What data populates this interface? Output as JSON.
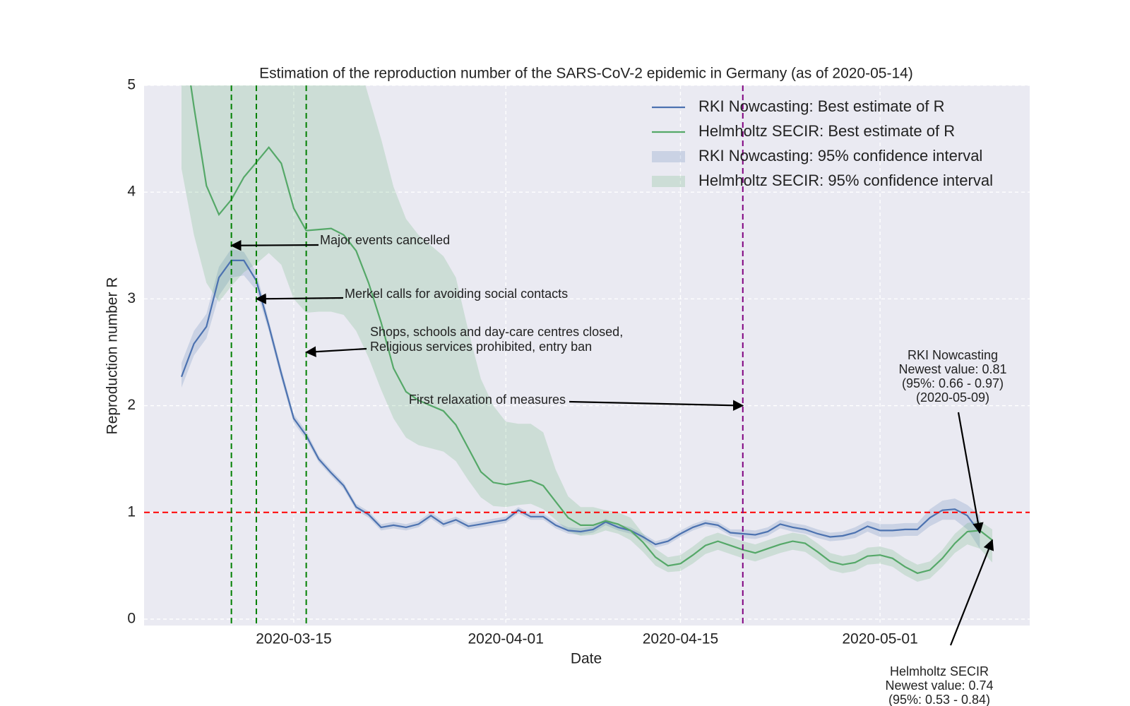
{
  "chart_data": {
    "type": "line",
    "title": "Estimation of the reproduction number of the SARS-CoV-2 epidemic in Germany (as of 2020-05-14)",
    "x_label": "Date",
    "y_label": "Reproduction number R",
    "x": [
      "2020-03-06",
      "2020-03-07",
      "2020-03-08",
      "2020-03-09",
      "2020-03-10",
      "2020-03-11",
      "2020-03-12",
      "2020-03-13",
      "2020-03-14",
      "2020-03-15",
      "2020-03-16",
      "2020-03-17",
      "2020-03-18",
      "2020-03-19",
      "2020-03-20",
      "2020-03-21",
      "2020-03-22",
      "2020-03-23",
      "2020-03-24",
      "2020-03-25",
      "2020-03-26",
      "2020-03-27",
      "2020-03-28",
      "2020-03-29",
      "2020-03-30",
      "2020-03-31",
      "2020-04-01",
      "2020-04-02",
      "2020-04-03",
      "2020-04-04",
      "2020-04-05",
      "2020-04-06",
      "2020-04-07",
      "2020-04-08",
      "2020-04-09",
      "2020-04-10",
      "2020-04-11",
      "2020-04-12",
      "2020-04-13",
      "2020-04-14",
      "2020-04-15",
      "2020-04-16",
      "2020-04-17",
      "2020-04-18",
      "2020-04-19",
      "2020-04-20",
      "2020-04-21",
      "2020-04-22",
      "2020-04-23",
      "2020-04-24",
      "2020-04-25",
      "2020-04-26",
      "2020-04-27",
      "2020-04-28",
      "2020-04-29",
      "2020-04-30",
      "2020-05-01",
      "2020-05-02",
      "2020-05-03",
      "2020-05-04",
      "2020-05-05",
      "2020-05-06",
      "2020-05-07",
      "2020-05-08",
      "2020-05-09",
      "2020-05-10"
    ],
    "series": [
      {
        "name": "RKI Nowcasting: Best estimate of R",
        "color": "#4c72b0",
        "values": [
          2.27,
          2.58,
          2.74,
          3.2,
          3.36,
          3.36,
          3.17,
          2.75,
          2.3,
          1.88,
          1.72,
          1.5,
          1.37,
          1.25,
          1.05,
          0.98,
          0.86,
          0.88,
          0.86,
          0.89,
          0.97,
          0.89,
          0.93,
          0.87,
          0.89,
          0.91,
          0.93,
          1.02,
          0.96,
          0.96,
          0.88,
          0.83,
          0.82,
          0.84,
          0.91,
          0.86,
          0.83,
          0.77,
          0.7,
          0.73,
          0.8,
          0.86,
          0.9,
          0.88,
          0.81,
          0.8,
          0.79,
          0.82,
          0.89,
          0.86,
          0.84,
          0.8,
          0.77,
          0.78,
          0.81,
          0.87,
          0.83,
          0.83,
          0.84,
          0.84,
          0.95,
          1.02,
          1.03,
          0.97,
          0.81,
          null
        ]
      },
      {
        "name": "Helmholtz SECIR: Best estimate of R",
        "color": "#55a868",
        "values": [
          5.6,
          4.8,
          4.06,
          3.79,
          3.93,
          4.14,
          4.28,
          4.42,
          4.27,
          3.85,
          3.64,
          3.65,
          3.66,
          3.6,
          3.45,
          3.15,
          2.78,
          2.35,
          2.13,
          2.05,
          2.0,
          1.95,
          1.82,
          1.6,
          1.38,
          1.28,
          1.26,
          1.28,
          1.3,
          1.25,
          1.1,
          0.95,
          0.88,
          0.88,
          0.92,
          0.89,
          0.83,
          0.72,
          0.58,
          0.5,
          0.52,
          0.6,
          0.69,
          0.73,
          0.69,
          0.65,
          0.62,
          0.66,
          0.7,
          0.73,
          0.71,
          0.63,
          0.54,
          0.51,
          0.53,
          0.59,
          0.6,
          0.57,
          0.49,
          0.43,
          0.46,
          0.57,
          0.71,
          0.82,
          0.83,
          0.74
        ]
      },
      {
        "name": "RKI Nowcasting: 95% confidence interval",
        "color": "#4c72b0",
        "lower": [
          2.17,
          2.47,
          2.63,
          3.03,
          3.2,
          3.22,
          3.08,
          2.7,
          2.25,
          1.84,
          1.68,
          1.47,
          1.34,
          1.22,
          1.02,
          0.95,
          0.83,
          0.85,
          0.83,
          0.86,
          0.94,
          0.86,
          0.9,
          0.84,
          0.86,
          0.88,
          0.9,
          0.99,
          0.93,
          0.93,
          0.85,
          0.8,
          0.79,
          0.81,
          0.88,
          0.83,
          0.8,
          0.74,
          0.67,
          0.7,
          0.77,
          0.83,
          0.87,
          0.85,
          0.78,
          0.76,
          0.75,
          0.78,
          0.85,
          0.82,
          0.8,
          0.76,
          0.73,
          0.74,
          0.76,
          0.82,
          0.77,
          0.77,
          0.78,
          0.78,
          0.87,
          0.93,
          0.93,
          0.84,
          0.66,
          null
        ],
        "upper": [
          2.4,
          2.7,
          2.86,
          3.3,
          3.47,
          3.44,
          3.25,
          2.8,
          2.35,
          1.92,
          1.76,
          1.53,
          1.4,
          1.28,
          1.08,
          1.01,
          0.89,
          0.91,
          0.89,
          0.92,
          1.0,
          0.92,
          0.96,
          0.9,
          0.92,
          0.94,
          0.96,
          1.05,
          0.99,
          0.99,
          0.91,
          0.86,
          0.85,
          0.87,
          0.94,
          0.89,
          0.86,
          0.8,
          0.73,
          0.76,
          0.83,
          0.89,
          0.93,
          0.91,
          0.84,
          0.84,
          0.83,
          0.86,
          0.93,
          0.9,
          0.88,
          0.84,
          0.81,
          0.82,
          0.86,
          0.92,
          0.89,
          0.89,
          0.9,
          0.9,
          1.03,
          1.11,
          1.13,
          1.07,
          0.97,
          null
        ]
      },
      {
        "name": "Helmholtz SECIR: 95% confidence interval",
        "color": "#55a868",
        "lower": [
          4.22,
          3.6,
          3.15,
          2.97,
          3.12,
          3.25,
          3.33,
          3.43,
          3.32,
          3.0,
          2.87,
          2.88,
          2.88,
          2.85,
          2.7,
          2.45,
          2.15,
          1.88,
          1.7,
          1.63,
          1.6,
          1.57,
          1.48,
          1.3,
          1.14,
          1.06,
          1.05,
          1.07,
          1.08,
          1.03,
          0.93,
          0.82,
          0.78,
          0.79,
          0.83,
          0.8,
          0.74,
          0.63,
          0.5,
          0.44,
          0.45,
          0.52,
          0.61,
          0.65,
          0.61,
          0.57,
          0.54,
          0.58,
          0.62,
          0.65,
          0.63,
          0.55,
          0.46,
          0.43,
          0.45,
          0.51,
          0.52,
          0.49,
          0.41,
          0.35,
          0.38,
          0.49,
          0.62,
          0.7,
          0.66,
          0.53
        ],
        "upper": [
          6.5,
          6.3,
          6.0,
          5.9,
          6.0,
          6.1,
          6.2,
          6.3,
          6.1,
          5.8,
          5.6,
          5.6,
          5.6,
          5.5,
          5.3,
          4.9,
          4.5,
          4.05,
          3.75,
          3.6,
          3.5,
          3.4,
          3.2,
          2.7,
          2.25,
          2.0,
          1.85,
          1.83,
          1.83,
          1.75,
          1.4,
          1.15,
          1.05,
          1.05,
          1.02,
          1.0,
          0.95,
          0.8,
          0.66,
          0.58,
          0.6,
          0.68,
          0.77,
          0.81,
          0.77,
          0.73,
          0.7,
          0.74,
          0.78,
          0.81,
          0.79,
          0.71,
          0.62,
          0.59,
          0.61,
          0.67,
          0.68,
          0.65,
          0.57,
          0.51,
          0.54,
          0.65,
          0.8,
          0.9,
          0.92,
          0.84
        ]
      }
    ],
    "xlim": [
      "2020-03-03",
      "2020-05-13"
    ],
    "xticks": [
      "2020-03-15",
      "2020-04-01",
      "2020-04-15",
      "2020-05-01"
    ],
    "ylim": [
      -0.06,
      5
    ],
    "yticks": [
      0,
      1,
      2,
      3,
      4,
      5
    ],
    "grid": true,
    "legend": "upper right",
    "vlines": [
      {
        "x": "2020-03-10",
        "color": "#008000"
      },
      {
        "x": "2020-03-12",
        "color": "#008000"
      },
      {
        "x": "2020-03-16",
        "color": "#008000"
      },
      {
        "x": "2020-04-20",
        "color": "#800080"
      }
    ],
    "hlines": [
      {
        "y": 1,
        "color": "#ff0000"
      }
    ],
    "annotations": [
      {
        "text": [
          "Major events cancelled"
        ],
        "xy": [
          "2020-03-10",
          3.5
        ]
      },
      {
        "text": [
          "Merkel calls for avoiding social contacts"
        ],
        "xy": [
          "2020-03-12",
          3.0
        ]
      },
      {
        "text": [
          "Shops, schools and day-care centres closed,",
          "Religious services prohibited, entry ban"
        ],
        "xy": [
          "2020-03-16",
          2.5
        ]
      },
      {
        "text": [
          "First relaxation of measures"
        ],
        "xy": [
          "2020-04-20",
          2.0
        ]
      },
      {
        "text": [
          "RKI Nowcasting",
          "Newest value: 0.81",
          "(95%: 0.66 - 0.97)",
          "(2020-05-09)"
        ],
        "xy": [
          "2020-05-09",
          0.81
        ]
      },
      {
        "text": [
          "Helmholtz SECIR",
          "Newest value: 0.74",
          "(95%: 0.53 - 0.84)"
        ],
        "xy": [
          "2020-05-10",
          0.74
        ]
      }
    ]
  }
}
